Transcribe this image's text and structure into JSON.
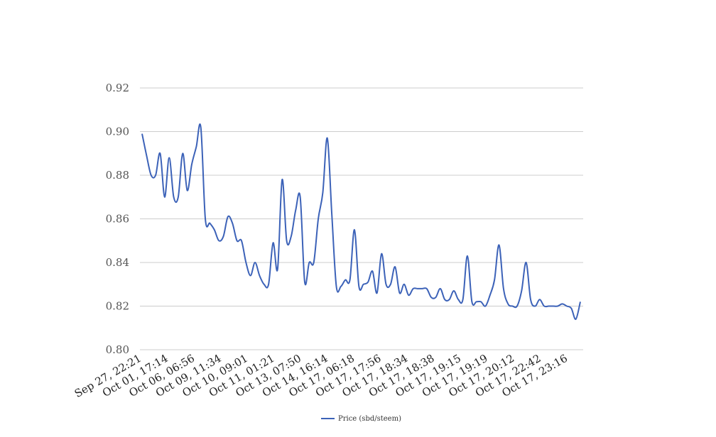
{
  "chart_data": {
    "type": "line",
    "title": "",
    "xlabel": "",
    "ylabel": "",
    "ylim": [
      0.8,
      0.92
    ],
    "yticks": [
      "0.80",
      "0.82",
      "0.84",
      "0.86",
      "0.88",
      "0.90",
      "0.92"
    ],
    "grid": true,
    "legend_position": "bottom",
    "x_tick_labels": [
      "Sep 27, 22:21",
      "Oct 01, 17:14",
      "Oct 06, 06:56",
      "Oct 09, 11:34",
      "Oct 10, 09:01",
      "Oct 11, 01:21",
      "Oct 13, 07:50",
      "Oct 14, 16:14",
      "Oct 17, 06:18",
      "Oct 17, 17:56",
      "Oct 17, 18:34",
      "Oct 17, 18:38",
      "Oct 17, 19:15",
      "Oct 17, 19:19",
      "Oct 17, 20:12",
      "Oct 17, 22:42",
      "Oct 17, 23:16"
    ],
    "series": [
      {
        "name": "Price (sbd/steem)",
        "color": "#3c62b8",
        "values": [
          0.899,
          0.889,
          0.88,
          0.88,
          0.89,
          0.87,
          0.888,
          0.87,
          0.87,
          0.89,
          0.873,
          0.885,
          0.893,
          0.902,
          0.86,
          0.858,
          0.855,
          0.85,
          0.852,
          0.861,
          0.858,
          0.85,
          0.85,
          0.84,
          0.834,
          0.84,
          0.834,
          0.83,
          0.83,
          0.849,
          0.837,
          0.878,
          0.85,
          0.852,
          0.864,
          0.87,
          0.831,
          0.84,
          0.84,
          0.86,
          0.872,
          0.897,
          0.862,
          0.829,
          0.829,
          0.832,
          0.832,
          0.855,
          0.829,
          0.83,
          0.831,
          0.836,
          0.826,
          0.844,
          0.83,
          0.83,
          0.838,
          0.826,
          0.83,
          0.825,
          0.828,
          0.828,
          0.828,
          0.828,
          0.824,
          0.824,
          0.828,
          0.823,
          0.823,
          0.827,
          0.823,
          0.823,
          0.843,
          0.822,
          0.822,
          0.822,
          0.82,
          0.825,
          0.832,
          0.848,
          0.828,
          0.821,
          0.82,
          0.82,
          0.827,
          0.84,
          0.823,
          0.82,
          0.823,
          0.82,
          0.82,
          0.82,
          0.82,
          0.821,
          0.82,
          0.819,
          0.814,
          0.822
        ]
      }
    ]
  }
}
